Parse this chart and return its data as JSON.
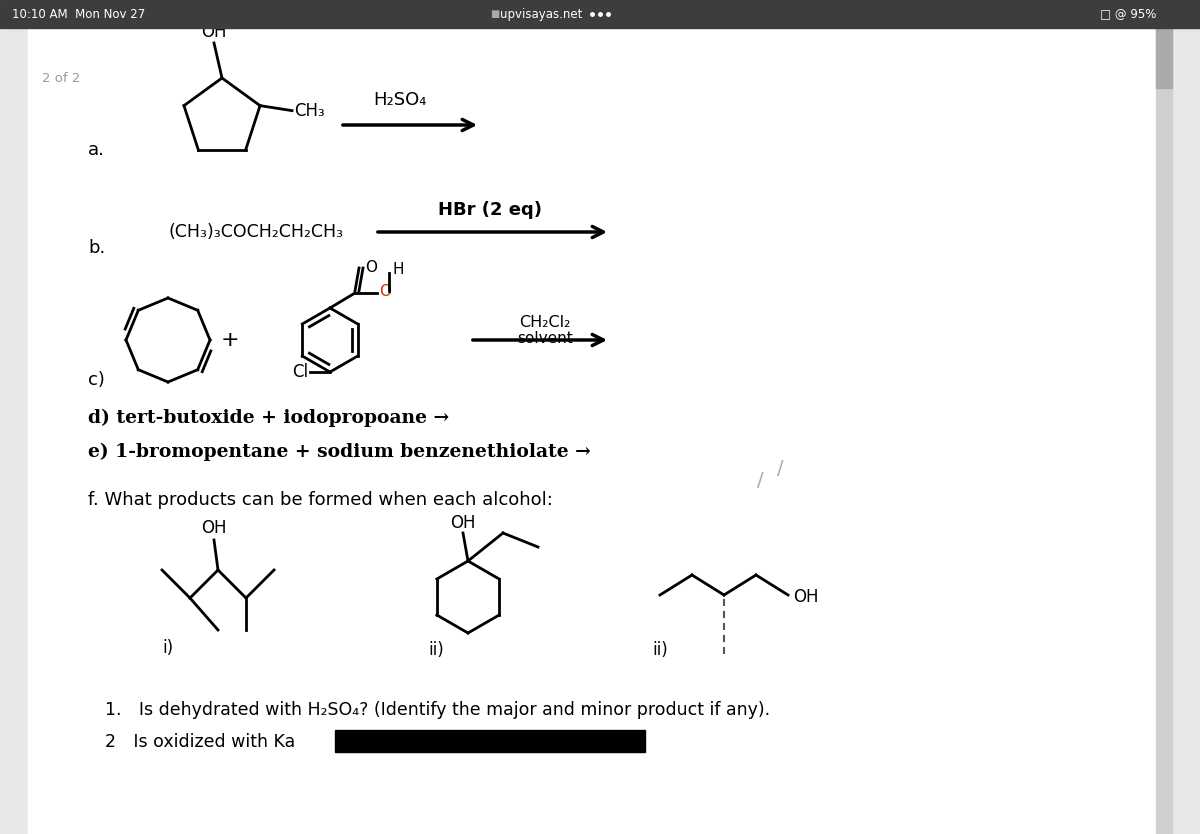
{
  "bg_color": "#e8e8e8",
  "page_bg": "#ffffff",
  "status_bar_bg": "#3d3d3d",
  "status_bar_text": "#ffffff",
  "status_time": "10:10 AM  Mon Nov 27",
  "status_url": "upvisayas.net",
  "status_wifi": "95%",
  "page_indicator": "2 of 2",
  "label_a": "a.",
  "label_b": "b.",
  "label_c": "c)",
  "label_d": "d) tert-butoxide + iodopropoane →",
  "label_e": "e) 1-bromopentane + sodium benzenethiolate →",
  "label_f": "f. What products can be formed when each alcohol:",
  "reagent_a": "H₂SO₄",
  "reagent_b": "HBr (2 eq)",
  "reagent_b_text": "(CH₃)₃COCH₂CH₂CH₃",
  "reagent_c_solvent": "CH₂Cl₂",
  "reagent_c_solvent2": "solvent",
  "sub1": "i)",
  "sub2": "ii)",
  "sub3": "ii)",
  "point1": "1. Is dehydrated with H₂SO₄? (Identify the major and minor product if any).",
  "point2": "2 Is oxidized with Ka"
}
